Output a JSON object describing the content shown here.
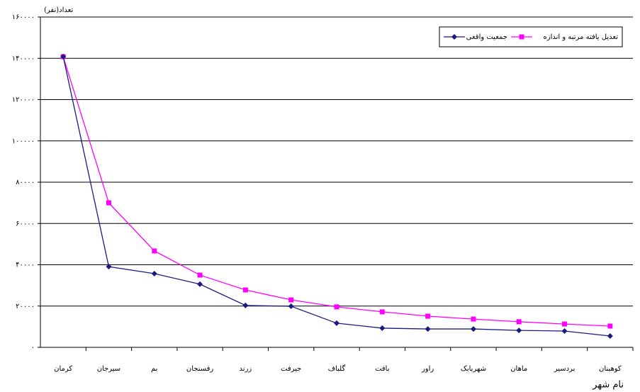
{
  "chart_data": {
    "type": "line",
    "y_label": "تعداد(نفر)",
    "x_label": "نام شهر",
    "categories": [
      "کرمان",
      "سیرجان",
      "بم",
      "رفسنجان",
      "زرند",
      "جیرفت",
      "گلباف",
      "بافت",
      "راور",
      "شهربابک",
      "ماهان",
      "بردسیر",
      "کوهبنان"
    ],
    "series": [
      {
        "name": "جمعیت واقعی",
        "color": "#1a1a80",
        "marker": "diamond",
        "values": [
          140800,
          39100,
          35700,
          30600,
          20300,
          19900,
          11700,
          9300,
          8900,
          8900,
          8200,
          7900,
          5500
        ]
      },
      {
        "name": "تعدیل یافته مرتبه و اندازه",
        "color": "#ff00ff",
        "marker": "square",
        "values": [
          140800,
          70000,
          46700,
          35000,
          27800,
          23000,
          19600,
          17200,
          15100,
          13700,
          12400,
          11300,
          10300
        ]
      }
    ],
    "ylim": [
      0,
      160000
    ],
    "yticks": [
      {
        "value": 0,
        "label": "۰"
      },
      {
        "value": 20000,
        "label": "۲۰۰۰۰"
      },
      {
        "value": 40000,
        "label": "۴۰۰۰۰"
      },
      {
        "value": 60000,
        "label": "۶۰۰۰۰"
      },
      {
        "value": 80000,
        "label": "۸۰۰۰۰"
      },
      {
        "value": 100000,
        "label": "۱۰۰۰۰۰"
      },
      {
        "value": 120000,
        "label": "۱۲۰۰۰۰"
      },
      {
        "value": 140000,
        "label": "۱۴۰۰۰۰"
      },
      {
        "value": 160000,
        "label": "۱۶۰۰۰۰"
      }
    ],
    "grid": true,
    "legend": "top-right"
  }
}
